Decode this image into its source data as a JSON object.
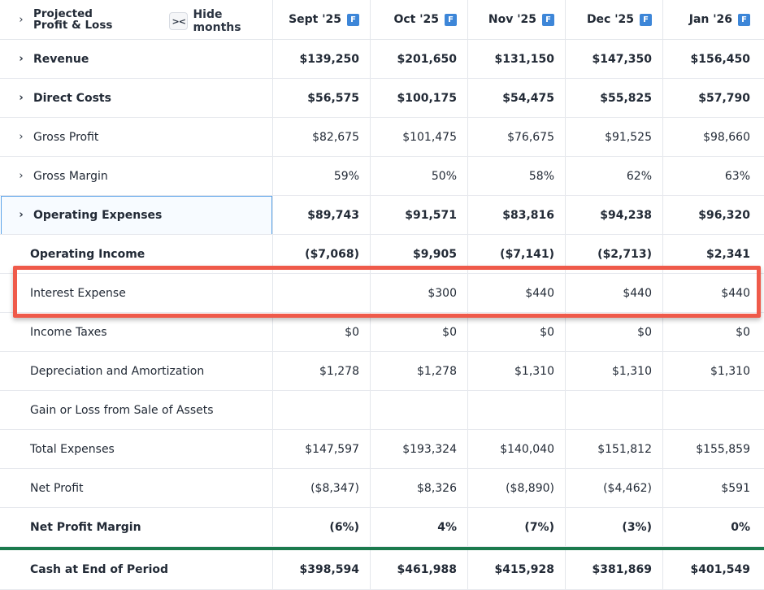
{
  "header": {
    "title_line1": "Projected",
    "title_line2": "Profit & Loss",
    "hide_icon": "><",
    "hide_label": "Hide months",
    "badge": "F",
    "months": [
      "Sept '25",
      "Oct '25",
      "Nov '25",
      "Dec '25",
      "Jan '26"
    ]
  },
  "rows": [
    {
      "label": "Revenue",
      "values": [
        "$139,250",
        "$201,650",
        "$131,150",
        "$147,350",
        "$156,450"
      ]
    },
    {
      "label": "Direct Costs",
      "values": [
        "$56,575",
        "$100,175",
        "$54,475",
        "$55,825",
        "$57,790"
      ]
    },
    {
      "label": "Gross Profit",
      "values": [
        "$82,675",
        "$101,475",
        "$76,675",
        "$91,525",
        "$98,660"
      ]
    },
    {
      "label": "Gross Margin",
      "values": [
        "59%",
        "50%",
        "58%",
        "62%",
        "63%"
      ]
    },
    {
      "label": "Operating Expenses",
      "values": [
        "$89,743",
        "$91,571",
        "$83,816",
        "$94,238",
        "$96,320"
      ]
    },
    {
      "label": "Operating Income",
      "values": [
        "($7,068)",
        "$9,905",
        "($7,141)",
        "($2,713)",
        "$2,341"
      ]
    },
    {
      "label": "Interest Expense",
      "values": [
        "",
        "$300",
        "$440",
        "$440",
        "$440"
      ]
    },
    {
      "label": "Income Taxes",
      "values": [
        "$0",
        "$0",
        "$0",
        "$0",
        "$0"
      ]
    },
    {
      "label": "Depreciation and Amortization",
      "values": [
        "$1,278",
        "$1,278",
        "$1,310",
        "$1,310",
        "$1,310"
      ]
    },
    {
      "label": "Gain or Loss from Sale of Assets",
      "values": [
        "",
        "",
        "",
        "",
        ""
      ]
    },
    {
      "label": "Total Expenses",
      "values": [
        "$147,597",
        "$193,324",
        "$140,040",
        "$151,812",
        "$155,859"
      ]
    },
    {
      "label": "Net Profit",
      "values": [
        "($8,347)",
        "$8,326",
        "($8,890)",
        "($4,462)",
        "$591"
      ]
    },
    {
      "label": "Net Profit Margin",
      "values": [
        "(6%)",
        "4%",
        "(7%)",
        "(3%)",
        "0%"
      ]
    },
    {
      "label": "Cash at End of Period",
      "values": [
        "$398,594",
        "$461,988",
        "$415,928",
        "$381,869",
        "$401,549"
      ]
    }
  ],
  "colors": {
    "highlight": "#ef5a4a",
    "focus": "#5aa2e8",
    "badge": "#3d86d8",
    "divider": "#1b7a4d"
  }
}
